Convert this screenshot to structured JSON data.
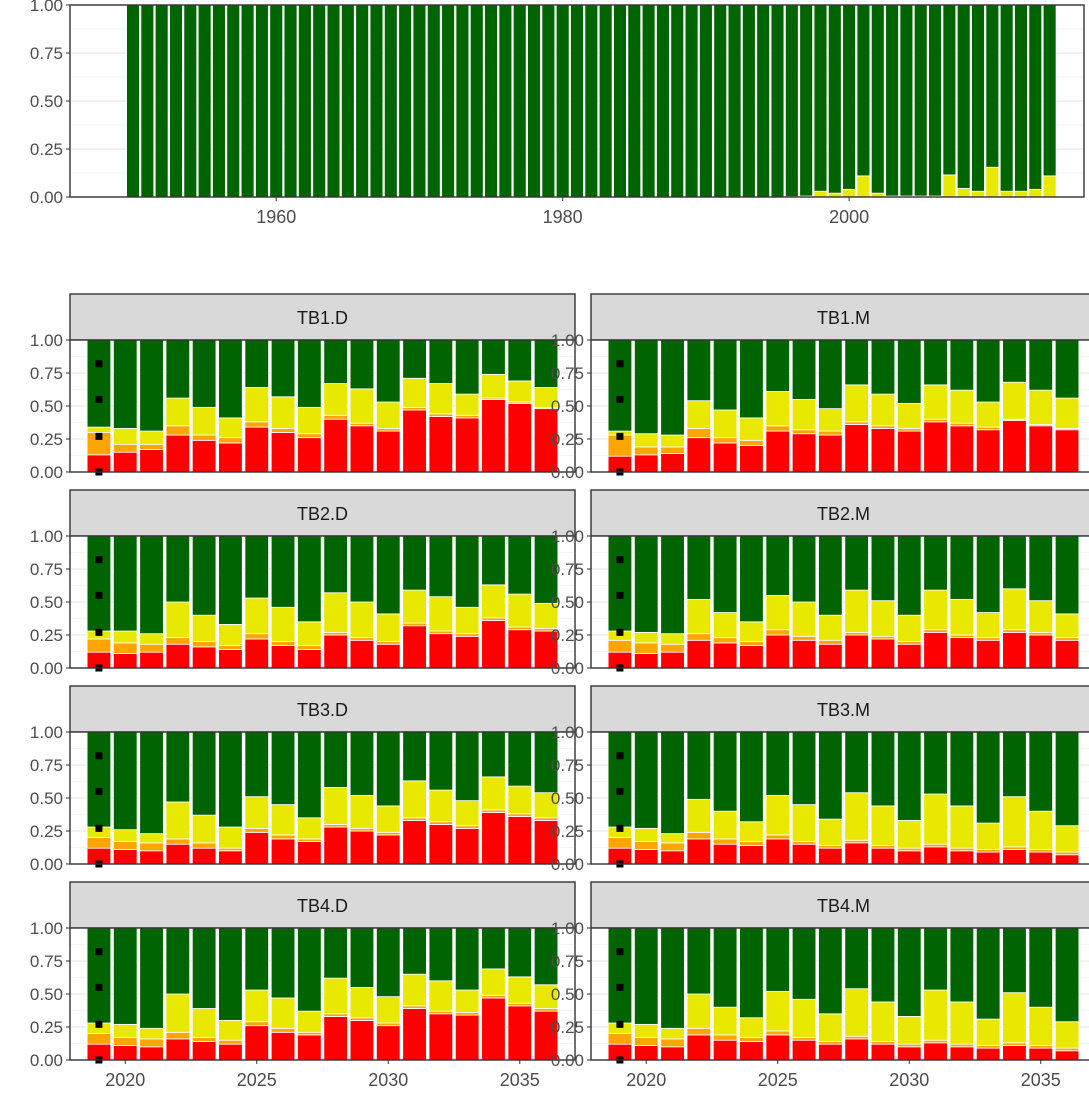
{
  "chart_data": [
    {
      "type": "bar",
      "stacked": true,
      "x": [
        1950,
        1951,
        1952,
        1953,
        1954,
        1955,
        1956,
        1957,
        1958,
        1959,
        1960,
        1961,
        1962,
        1963,
        1964,
        1965,
        1966,
        1967,
        1968,
        1969,
        1970,
        1971,
        1972,
        1973,
        1974,
        1975,
        1976,
        1977,
        1978,
        1979,
        1980,
        1981,
        1982,
        1983,
        1984,
        1985,
        1986,
        1987,
        1988,
        1989,
        1990,
        1991,
        1992,
        1993,
        1994,
        1995,
        1996,
        1997,
        1998,
        1999,
        2000,
        2001,
        2002,
        2003,
        2004,
        2005,
        2006,
        2007,
        2008,
        2009,
        2010,
        2011,
        2012,
        2013,
        2014
      ],
      "xticks": [
        "1960",
        "1980",
        "2000"
      ],
      "yticks": [
        "0.00",
        "0.25",
        "0.50",
        "0.75",
        "1.00"
      ],
      "ylim": [
        0,
        1
      ],
      "xlim": [
        1945.6,
        2016.4
      ],
      "series": [
        {
          "color": "#e8e800",
          "values": [
            0,
            0,
            0,
            0,
            0,
            0,
            0,
            0,
            0,
            0,
            0,
            0,
            0,
            0,
            0,
            0,
            0,
            0,
            0,
            0,
            0,
            0,
            0,
            0,
            0,
            0,
            0,
            0,
            0,
            0,
            0,
            0,
            0,
            0,
            0,
            0,
            0,
            0,
            0,
            0,
            0,
            0,
            0,
            0,
            0,
            0,
            0.002,
            0.005,
            0.03,
            0.02,
            0.04,
            0.11,
            0.02,
            0.005,
            0.005,
            0.005,
            0.005,
            0.115,
            0.045,
            0.03,
            0.155,
            0.03,
            0.03,
            0.04,
            0.11
          ]
        },
        {
          "color": "#006400",
          "values": [
            1,
            1,
            1,
            1,
            1,
            1,
            1,
            1,
            1,
            1,
            1,
            1,
            1,
            1,
            1,
            1,
            1,
            1,
            1,
            1,
            1,
            1,
            1,
            1,
            1,
            1,
            1,
            1,
            1,
            1,
            1,
            1,
            1,
            1,
            1,
            1,
            1,
            1,
            1,
            1,
            1,
            1,
            1,
            1,
            1,
            1,
            0.998,
            0.995,
            0.97,
            0.98,
            0.96,
            0.89,
            0.98,
            0.995,
            0.995,
            0.995,
            0.995,
            0.885,
            0.955,
            0.97,
            0.845,
            0.97,
            0.97,
            0.96,
            0.89
          ]
        }
      ]
    },
    {
      "type": "bar",
      "stacked": true,
      "facet_layout": "4x2",
      "x": [
        2019,
        2020,
        2021,
        2022,
        2023,
        2024,
        2025,
        2026,
        2027,
        2028,
        2029,
        2030,
        2031,
        2032,
        2033,
        2034,
        2035,
        2036
      ],
      "xticks": [
        "2020",
        "2025",
        "2030",
        "2035"
      ],
      "yticks": [
        "0.00",
        "0.25",
        "0.50",
        "0.75",
        "1.00"
      ],
      "ylim": [
        0,
        1
      ],
      "xlim": [
        2017.9,
        2037.1
      ],
      "stack_colors": [
        "#ff0000",
        "#ffa500",
        "#e8e800",
        "#006400"
      ],
      "points": {
        "x": 2019,
        "y": [
          0,
          0.27,
          0.55,
          0.82
        ],
        "color": "#000000"
      },
      "panels": [
        {
          "strip": "TB1.D",
          "red": [
            0.13,
            0.15,
            0.17,
            0.28,
            0.24,
            0.22,
            0.34,
            0.3,
            0.26,
            0.4,
            0.35,
            0.31,
            0.47,
            0.42,
            0.41,
            0.55,
            0.52,
            0.48
          ],
          "orange": [
            0.17,
            0.06,
            0.04,
            0.07,
            0.04,
            0.04,
            0.04,
            0.03,
            0.03,
            0.03,
            0.02,
            0.02,
            0.02,
            0.02,
            0.02,
            0.01,
            0.01,
            0.01
          ],
          "yellow": [
            0.04,
            0.12,
            0.1,
            0.21,
            0.21,
            0.15,
            0.26,
            0.24,
            0.2,
            0.24,
            0.26,
            0.2,
            0.22,
            0.23,
            0.16,
            0.18,
            0.16,
            0.15
          ]
        },
        {
          "strip": "TB1.M",
          "red": [
            0.12,
            0.13,
            0.14,
            0.26,
            0.22,
            0.2,
            0.31,
            0.29,
            0.28,
            0.36,
            0.33,
            0.31,
            0.38,
            0.35,
            0.32,
            0.39,
            0.35,
            0.32
          ],
          "orange": [
            0.16,
            0.06,
            0.05,
            0.07,
            0.04,
            0.04,
            0.04,
            0.03,
            0.03,
            0.02,
            0.02,
            0.02,
            0.02,
            0.02,
            0.02,
            0.01,
            0.01,
            0.01
          ],
          "yellow": [
            0.03,
            0.1,
            0.09,
            0.21,
            0.21,
            0.17,
            0.26,
            0.23,
            0.17,
            0.28,
            0.24,
            0.19,
            0.26,
            0.25,
            0.19,
            0.28,
            0.26,
            0.23
          ]
        },
        {
          "strip": "TB2.D",
          "red": [
            0.12,
            0.11,
            0.12,
            0.18,
            0.16,
            0.14,
            0.22,
            0.17,
            0.14,
            0.25,
            0.21,
            0.18,
            0.32,
            0.26,
            0.24,
            0.36,
            0.29,
            0.28
          ],
          "orange": [
            0.1,
            0.08,
            0.06,
            0.05,
            0.04,
            0.03,
            0.04,
            0.03,
            0.03,
            0.02,
            0.02,
            0.02,
            0.02,
            0.02,
            0.02,
            0.02,
            0.02,
            0.02
          ],
          "yellow": [
            0.06,
            0.09,
            0.08,
            0.27,
            0.2,
            0.16,
            0.27,
            0.26,
            0.18,
            0.3,
            0.27,
            0.21,
            0.25,
            0.26,
            0.2,
            0.25,
            0.25,
            0.19
          ]
        },
        {
          "strip": "TB2.M",
          "red": [
            0.12,
            0.11,
            0.12,
            0.21,
            0.19,
            0.17,
            0.25,
            0.21,
            0.18,
            0.25,
            0.22,
            0.18,
            0.27,
            0.23,
            0.21,
            0.27,
            0.25,
            0.21
          ],
          "orange": [
            0.09,
            0.08,
            0.06,
            0.05,
            0.04,
            0.03,
            0.04,
            0.03,
            0.03,
            0.02,
            0.02,
            0.02,
            0.02,
            0.02,
            0.02,
            0.02,
            0.02,
            0.02
          ],
          "yellow": [
            0.07,
            0.08,
            0.08,
            0.26,
            0.19,
            0.15,
            0.26,
            0.26,
            0.19,
            0.32,
            0.27,
            0.2,
            0.3,
            0.27,
            0.19,
            0.31,
            0.24,
            0.18
          ]
        },
        {
          "strip": "TB3.D",
          "red": [
            0.12,
            0.11,
            0.1,
            0.15,
            0.12,
            0.1,
            0.24,
            0.19,
            0.17,
            0.28,
            0.25,
            0.22,
            0.33,
            0.3,
            0.27,
            0.39,
            0.36,
            0.33
          ],
          "orange": [
            0.08,
            0.06,
            0.06,
            0.04,
            0.04,
            0.02,
            0.03,
            0.03,
            0.02,
            0.02,
            0.02,
            0.02,
            0.02,
            0.02,
            0.02,
            0.02,
            0.02,
            0.02
          ],
          "yellow": [
            0.08,
            0.09,
            0.07,
            0.28,
            0.21,
            0.16,
            0.24,
            0.23,
            0.16,
            0.28,
            0.25,
            0.2,
            0.28,
            0.24,
            0.19,
            0.25,
            0.21,
            0.19
          ]
        },
        {
          "strip": "TB3.M",
          "red": [
            0.12,
            0.11,
            0.1,
            0.19,
            0.15,
            0.14,
            0.19,
            0.15,
            0.12,
            0.16,
            0.12,
            0.1,
            0.13,
            0.1,
            0.09,
            0.11,
            0.09,
            0.07
          ],
          "orange": [
            0.08,
            0.06,
            0.06,
            0.05,
            0.04,
            0.03,
            0.03,
            0.02,
            0.02,
            0.02,
            0.02,
            0.02,
            0.02,
            0.02,
            0.02,
            0.02,
            0.02,
            0.02
          ],
          "yellow": [
            0.08,
            0.1,
            0.07,
            0.25,
            0.21,
            0.15,
            0.3,
            0.28,
            0.2,
            0.36,
            0.3,
            0.21,
            0.38,
            0.32,
            0.2,
            0.38,
            0.29,
            0.2
          ]
        },
        {
          "strip": "TB4.D",
          "red": [
            0.12,
            0.11,
            0.1,
            0.16,
            0.14,
            0.12,
            0.26,
            0.21,
            0.19,
            0.33,
            0.3,
            0.26,
            0.39,
            0.35,
            0.34,
            0.47,
            0.41,
            0.37
          ],
          "orange": [
            0.08,
            0.06,
            0.06,
            0.05,
            0.03,
            0.03,
            0.03,
            0.03,
            0.02,
            0.02,
            0.02,
            0.02,
            0.02,
            0.02,
            0.02,
            0.02,
            0.02,
            0.02
          ],
          "yellow": [
            0.08,
            0.1,
            0.08,
            0.29,
            0.22,
            0.15,
            0.24,
            0.23,
            0.16,
            0.27,
            0.23,
            0.2,
            0.24,
            0.23,
            0.17,
            0.2,
            0.2,
            0.18
          ]
        },
        {
          "strip": "TB4.M",
          "red": [
            0.12,
            0.11,
            0.1,
            0.19,
            0.15,
            0.14,
            0.19,
            0.15,
            0.12,
            0.16,
            0.12,
            0.1,
            0.13,
            0.1,
            0.09,
            0.11,
            0.09,
            0.07
          ],
          "orange": [
            0.08,
            0.06,
            0.06,
            0.05,
            0.04,
            0.03,
            0.03,
            0.02,
            0.02,
            0.02,
            0.02,
            0.02,
            0.02,
            0.02,
            0.02,
            0.02,
            0.02,
            0.02
          ],
          "yellow": [
            0.08,
            0.1,
            0.08,
            0.26,
            0.21,
            0.15,
            0.3,
            0.29,
            0.21,
            0.36,
            0.3,
            0.21,
            0.38,
            0.32,
            0.2,
            0.38,
            0.29,
            0.2
          ]
        }
      ]
    }
  ]
}
